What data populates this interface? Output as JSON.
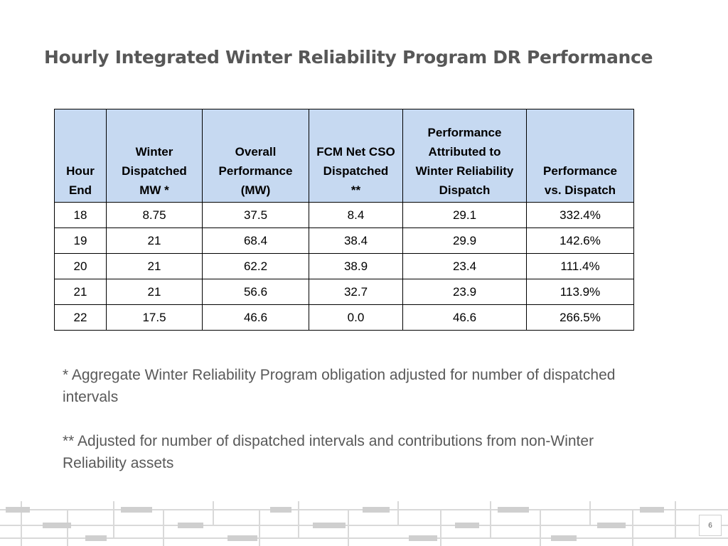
{
  "slide": {
    "title": "Hourly Integrated Winter Reliability Program DR Performance",
    "page_number": "6"
  },
  "table": {
    "headers": [
      [
        "Hour",
        "End"
      ],
      [
        "Winter",
        "Dispatched",
        "MW *"
      ],
      [
        "Overall",
        "Performance",
        "(MW)"
      ],
      [
        "FCM Net CSO",
        "Dispatched",
        "**"
      ],
      [
        "Performance",
        "Attributed to",
        "Winter Reliability",
        "Dispatch"
      ],
      [
        "Performance",
        "vs. Dispatch"
      ]
    ],
    "rows": [
      [
        "18",
        "8.75",
        "37.5",
        "8.4",
        "29.1",
        "332.4%"
      ],
      [
        "19",
        "21",
        "68.4",
        "38.4",
        "29.9",
        "142.6%"
      ],
      [
        "20",
        "21",
        "62.2",
        "38.9",
        "23.4",
        "111.4%"
      ],
      [
        "21",
        "21",
        "56.6",
        "32.7",
        "23.9",
        "113.9%"
      ],
      [
        "22",
        "17.5",
        "46.6",
        "0.0",
        "46.6",
        "266.5%"
      ]
    ],
    "header_color": "#c6d9f1"
  },
  "notes": [
    "* Aggregate Winter Reliability Program obligation adjusted for number of dispatched intervals",
    "** Adjusted for number of dispatched intervals and contributions from non-Winter Reliability assets"
  ]
}
